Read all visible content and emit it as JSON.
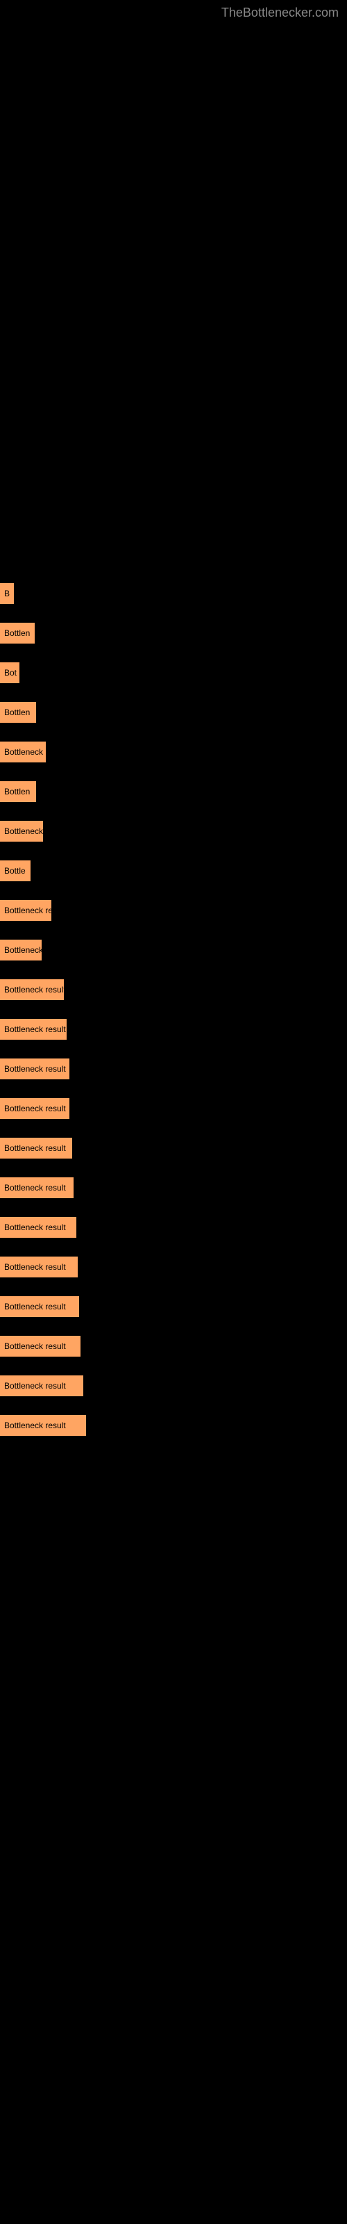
{
  "header": {
    "site_name": "TheBottlenecker.com"
  },
  "chart": {
    "type": "bar",
    "background_color": "#000000",
    "bar_color": "#ffa562",
    "text_color": "#000000",
    "font_size": 12,
    "bars": [
      {
        "label": "B",
        "width": 20
      },
      {
        "label": "Bottlen",
        "width": 50
      },
      {
        "label": "Bot",
        "width": 28
      },
      {
        "label": "Bottlen",
        "width": 52
      },
      {
        "label": "Bottleneck",
        "width": 66
      },
      {
        "label": "Bottlen",
        "width": 52
      },
      {
        "label": "Bottleneck",
        "width": 62
      },
      {
        "label": "Bottle",
        "width": 44
      },
      {
        "label": "Bottleneck re",
        "width": 74
      },
      {
        "label": "Bottleneck",
        "width": 60
      },
      {
        "label": "Bottleneck result",
        "width": 92
      },
      {
        "label": "Bottleneck result",
        "width": 96
      },
      {
        "label": "Bottleneck result",
        "width": 100
      },
      {
        "label": "Bottleneck result",
        "width": 100
      },
      {
        "label": "Bottleneck result",
        "width": 104
      },
      {
        "label": "Bottleneck result",
        "width": 106
      },
      {
        "label": "Bottleneck result",
        "width": 110
      },
      {
        "label": "Bottleneck result",
        "width": 112
      },
      {
        "label": "Bottleneck result",
        "width": 114
      },
      {
        "label": "Bottleneck result",
        "width": 116
      },
      {
        "label": "Bottleneck result",
        "width": 120
      },
      {
        "label": "Bottleneck result",
        "width": 124
      }
    ]
  }
}
